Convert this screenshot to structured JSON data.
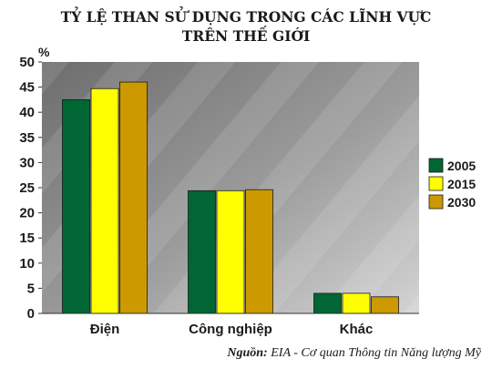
{
  "chart_data": {
    "type": "bar",
    "title_line1": "TỶ LỆ THAN SỬ DỤNG TRONG CÁC LĨNH VỰC",
    "title_line2": "TRÊN THẾ GIỚI",
    "ylabel": "%",
    "xlabel": "",
    "ylim": [
      0,
      50
    ],
    "yticks": [
      0,
      5,
      10,
      15,
      20,
      25,
      30,
      35,
      40,
      45,
      50
    ],
    "categories": [
      "Điện",
      "Công nghiệp",
      "Khác"
    ],
    "series": [
      {
        "name": "2005",
        "color": "#006633",
        "values": [
          42.5,
          24.4,
          4.0
        ]
      },
      {
        "name": "2015",
        "color": "#ffff00",
        "values": [
          44.7,
          24.4,
          4.0
        ]
      },
      {
        "name": "2030",
        "color": "#cc9900",
        "values": [
          46.0,
          24.6,
          3.3
        ]
      }
    ],
    "legend_position": "right",
    "grid": false
  },
  "source": {
    "label": "Nguồn:",
    "text": " EIA - Cơ quan Thông tin Năng lượng Mỹ"
  }
}
